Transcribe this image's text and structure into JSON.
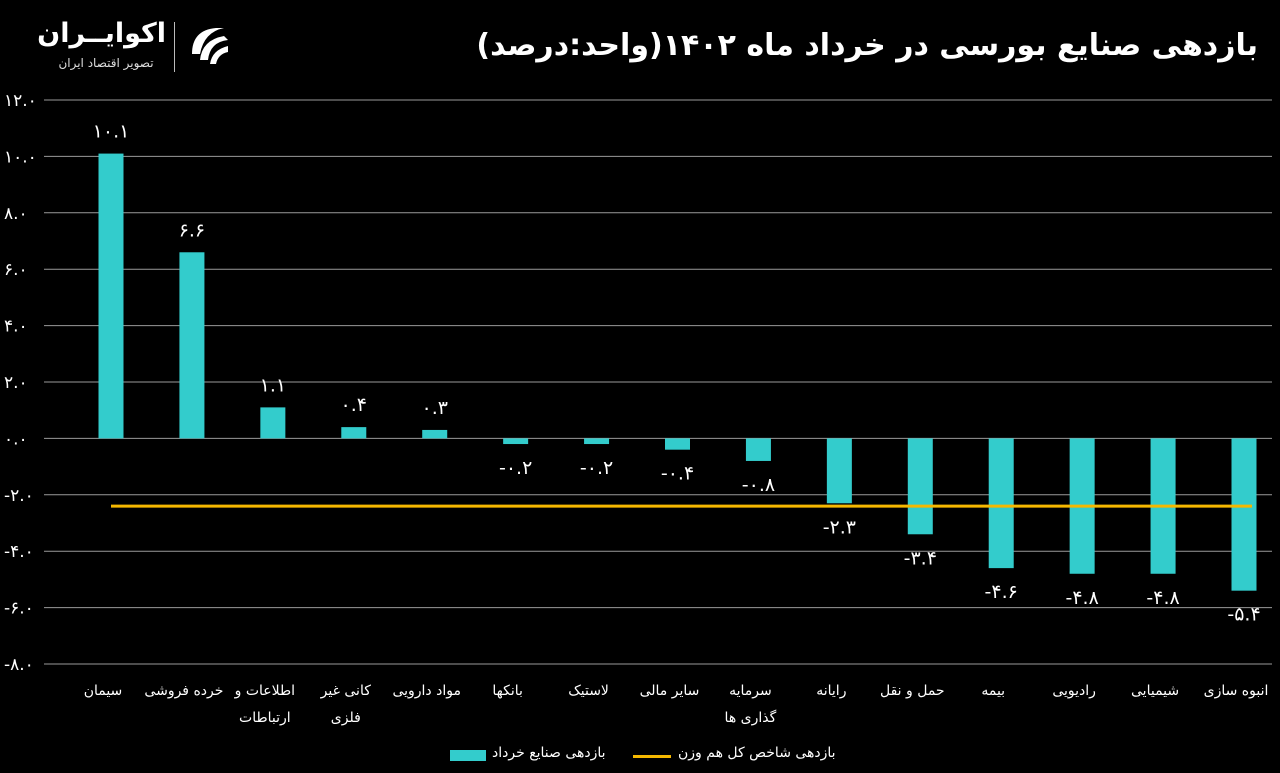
{
  "title": "بازدهی صنایع بورسی در خرداد ماه ۱۴۰۲(واحد:درصد)",
  "brand": {
    "name": "اکوایــران",
    "tagline": "تصویر اقتصاد ایران"
  },
  "colors": {
    "bar": "#33CCCC",
    "line": "#F5B800",
    "grid": "#9a9a9a",
    "background": "#000000",
    "text": "#ffffff"
  },
  "chart_data": {
    "type": "bar",
    "title": "بازدهی صنایع بورسی در خرداد ماه ۱۴۰۲(واحد:درصد)",
    "xlabel": "",
    "ylabel": "",
    "ylim": [
      -8,
      12
    ],
    "yticks": [
      12,
      10,
      8,
      6,
      4,
      2,
      0,
      -2,
      -4,
      -6,
      -8
    ],
    "ytick_labels": [
      "۱۲.۰",
      "۱۰.۰",
      "۸.۰",
      "۶.۰",
      "۴.۰",
      "۲.۰",
      "۰.۰",
      "-۲.۰",
      "-۴.۰",
      "-۶.۰",
      "-۸.۰"
    ],
    "grid": true,
    "legend_position": "bottom",
    "categories": [
      [
        "سیمان"
      ],
      [
        "خرده فروشی"
      ],
      [
        "اطلاعات و",
        "ارتباطات"
      ],
      [
        "کانی غیر",
        "فلزی"
      ],
      [
        "مواد دارویی"
      ],
      [
        "بانکها"
      ],
      [
        "لاستیک"
      ],
      [
        "سایر مالی"
      ],
      [
        "سرمایه",
        "گذاری ها"
      ],
      [
        "رایانه"
      ],
      [
        "حمل و نقل"
      ],
      [
        "بیمه"
      ],
      [
        "رادیویی"
      ],
      [
        "شیمیایی"
      ],
      [
        "انبوه سازی"
      ]
    ],
    "series": [
      {
        "name": "بازدهی صنایع خرداد",
        "values": [
          10.1,
          6.6,
          1.1,
          0.4,
          0.3,
          -0.2,
          -0.2,
          -0.4,
          -0.8,
          -2.3,
          -3.4,
          -4.6,
          -4.8,
          -4.8,
          -5.4
        ],
        "labels": [
          "۱۰.۱",
          "۶.۶",
          "۱.۱",
          "۰.۴",
          "۰.۳",
          "-۰.۲",
          "-۰.۲",
          "-۰.۴",
          "-۰.۸",
          "-۲.۳",
          "-۳.۴",
          "-۴.۶",
          "-۴.۸",
          "-۴.۸",
          "-۵.۴"
        ]
      }
    ],
    "reference_line": {
      "name": "بازدهی شاخص کل هم وزن",
      "value": -2.4
    }
  }
}
